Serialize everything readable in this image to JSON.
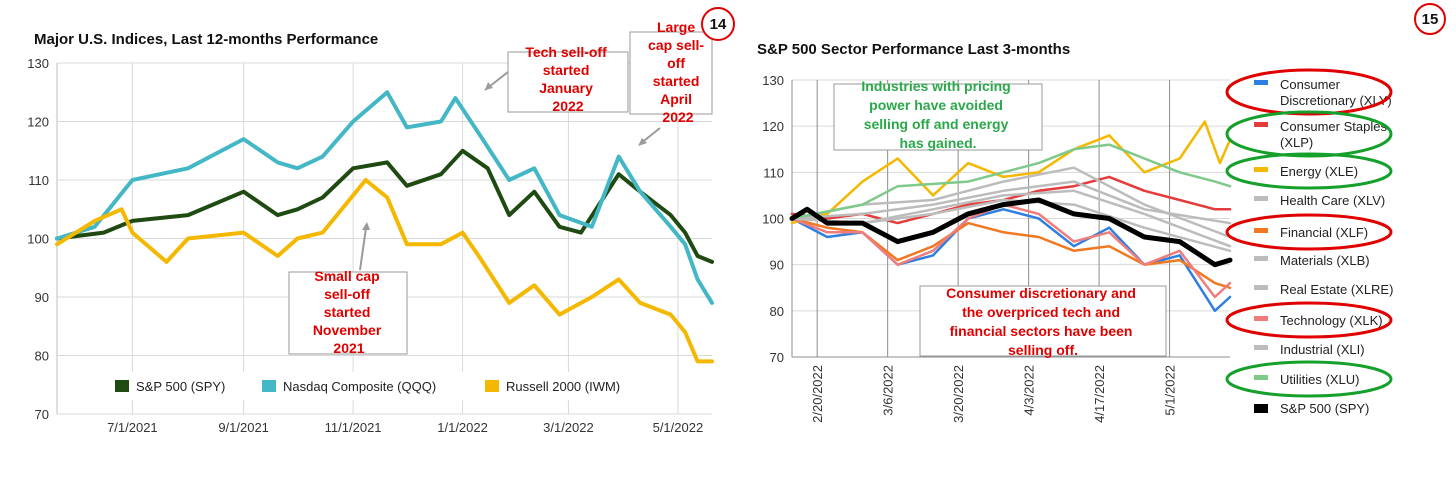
{
  "chart_data": [
    {
      "type": "line",
      "title": "Major U.S. Indices, Last 12-months Performance",
      "page_badge": "14",
      "ylim": [
        70,
        130
      ],
      "yticks": [
        "70",
        "80",
        "90",
        "100",
        "110",
        "120",
        "130"
      ],
      "xticks": [
        "7/1/2021",
        "9/1/2021",
        "11/1/2021",
        "1/1/2022",
        "3/1/2022",
        "5/1/2022"
      ],
      "x_range": [
        "2021-05-20",
        "2022-05-20"
      ],
      "grid": true,
      "legend_position": "bottom",
      "series": [
        {
          "name": "S&P 500 (SPY)",
          "color": "#1f4a12",
          "points": [
            [
              "2021-05-20",
              100
            ],
            [
              "2021-06-15",
              101
            ],
            [
              "2021-07-01",
              103
            ],
            [
              "2021-08-01",
              104
            ],
            [
              "2021-09-01",
              108
            ],
            [
              "2021-09-20",
              104
            ],
            [
              "2021-10-01",
              105
            ],
            [
              "2021-10-15",
              107
            ],
            [
              "2021-11-01",
              112
            ],
            [
              "2021-11-20",
              113
            ],
            [
              "2021-12-01",
              109
            ],
            [
              "2021-12-20",
              111
            ],
            [
              "2022-01-01",
              115
            ],
            [
              "2022-01-15",
              112
            ],
            [
              "2022-01-27",
              104
            ],
            [
              "2022-02-10",
              108
            ],
            [
              "2022-02-24",
              102
            ],
            [
              "2022-03-08",
              101
            ],
            [
              "2022-03-29",
              111
            ],
            [
              "2022-04-10",
              108
            ],
            [
              "2022-04-27",
              104
            ],
            [
              "2022-05-05",
              101
            ],
            [
              "2022-05-12",
              97
            ],
            [
              "2022-05-20",
              96
            ]
          ]
        },
        {
          "name": "Nasdaq Composite (QQQ)",
          "color": "#44b7c6",
          "points": [
            [
              "2021-05-20",
              100
            ],
            [
              "2021-06-10",
              102
            ],
            [
              "2021-07-01",
              110
            ],
            [
              "2021-08-01",
              112
            ],
            [
              "2021-09-01",
              117
            ],
            [
              "2021-09-20",
              113
            ],
            [
              "2021-10-01",
              112
            ],
            [
              "2021-10-15",
              114
            ],
            [
              "2021-11-01",
              120
            ],
            [
              "2021-11-20",
              125
            ],
            [
              "2021-12-01",
              119
            ],
            [
              "2021-12-20",
              120
            ],
            [
              "2021-12-28",
              124
            ],
            [
              "2022-01-10",
              118
            ],
            [
              "2022-01-27",
              110
            ],
            [
              "2022-02-10",
              112
            ],
            [
              "2022-02-24",
              104
            ],
            [
              "2022-03-14",
              102
            ],
            [
              "2022-03-29",
              114
            ],
            [
              "2022-04-10",
              108
            ],
            [
              "2022-04-27",
              102
            ],
            [
              "2022-05-05",
              99
            ],
            [
              "2022-05-12",
              93
            ],
            [
              "2022-05-20",
              89
            ]
          ]
        },
        {
          "name": "Russell 2000 (IWM)",
          "color": "#f5b800",
          "points": [
            [
              "2021-05-20",
              99
            ],
            [
              "2021-06-10",
              103
            ],
            [
              "2021-06-25",
              105
            ],
            [
              "2021-07-01",
              101
            ],
            [
              "2021-07-20",
              96
            ],
            [
              "2021-08-01",
              100
            ],
            [
              "2021-09-01",
              101
            ],
            [
              "2021-09-20",
              97
            ],
            [
              "2021-10-01",
              100
            ],
            [
              "2021-10-15",
              101
            ],
            [
              "2021-11-08",
              110
            ],
            [
              "2021-11-20",
              107
            ],
            [
              "2021-12-01",
              99
            ],
            [
              "2021-12-20",
              99
            ],
            [
              "2022-01-01",
              101
            ],
            [
              "2022-01-10",
              97
            ],
            [
              "2022-01-27",
              89
            ],
            [
              "2022-02-10",
              92
            ],
            [
              "2022-02-24",
              87
            ],
            [
              "2022-03-14",
              90
            ],
            [
              "2022-03-29",
              93
            ],
            [
              "2022-04-10",
              89
            ],
            [
              "2022-04-27",
              87
            ],
            [
              "2022-05-05",
              84
            ],
            [
              "2022-05-12",
              79
            ],
            [
              "2022-05-20",
              79
            ]
          ]
        }
      ],
      "annotations": [
        {
          "lines": [
            "Tech sell-off",
            "started",
            "January",
            "2022"
          ]
        },
        {
          "lines": [
            "Large",
            "cap sell-",
            "off",
            "started",
            "April",
            "2022"
          ]
        },
        {
          "lines": [
            "Small cap",
            "sell-off",
            "started",
            "November",
            "2021"
          ]
        }
      ]
    },
    {
      "type": "line",
      "title": "S&P 500 Sector Performance Last 3-months",
      "page_badge": "15",
      "ylim": [
        70,
        130
      ],
      "yticks": [
        "70",
        "80",
        "90",
        "100",
        "110",
        "120",
        "130"
      ],
      "xticks": [
        "2/20/2022",
        "3/6/2022",
        "3/20/2022",
        "4/3/2022",
        "4/17/2022",
        "5/1/2022"
      ],
      "x_range": [
        "2022-02-15",
        "2022-05-13"
      ],
      "grid": true,
      "legend_position": "right",
      "series": [
        {
          "name": "Consumer Discretionary (XLY)",
          "color": "#2f7fe0",
          "circled": "red",
          "points": [
            [
              "2022-02-15",
              100
            ],
            [
              "2022-02-22",
              96
            ],
            [
              "2022-03-01",
              97
            ],
            [
              "2022-03-08",
              90
            ],
            [
              "2022-03-15",
              92
            ],
            [
              "2022-03-22",
              100
            ],
            [
              "2022-03-29",
              102
            ],
            [
              "2022-04-05",
              100
            ],
            [
              "2022-04-12",
              94
            ],
            [
              "2022-04-19",
              98
            ],
            [
              "2022-04-26",
              90
            ],
            [
              "2022-05-03",
              92
            ],
            [
              "2022-05-10",
              80
            ],
            [
              "2022-05-13",
              83
            ]
          ]
        },
        {
          "name": "Consumer Staples (XLP)",
          "color": "#e53b3b",
          "circled": "green",
          "points": [
            [
              "2022-02-15",
              101
            ],
            [
              "2022-02-22",
              100
            ],
            [
              "2022-03-01",
              101
            ],
            [
              "2022-03-08",
              99
            ],
            [
              "2022-03-15",
              101
            ],
            [
              "2022-03-22",
              103
            ],
            [
              "2022-03-29",
              104
            ],
            [
              "2022-04-05",
              106
            ],
            [
              "2022-04-12",
              107
            ],
            [
              "2022-04-19",
              109
            ],
            [
              "2022-04-26",
              106
            ],
            [
              "2022-05-03",
              104
            ],
            [
              "2022-05-10",
              102
            ],
            [
              "2022-05-13",
              102
            ]
          ]
        },
        {
          "name": "Energy (XLE)",
          "color": "#f5b800",
          "circled": "green",
          "points": [
            [
              "2022-02-15",
              99
            ],
            [
              "2022-02-22",
              101
            ],
            [
              "2022-03-01",
              108
            ],
            [
              "2022-03-08",
              113
            ],
            [
              "2022-03-15",
              105
            ],
            [
              "2022-03-22",
              112
            ],
            [
              "2022-03-29",
              109
            ],
            [
              "2022-04-05",
              110
            ],
            [
              "2022-04-12",
              115
            ],
            [
              "2022-04-19",
              118
            ],
            [
              "2022-04-26",
              110
            ],
            [
              "2022-05-03",
              113
            ],
            [
              "2022-05-08",
              121
            ],
            [
              "2022-05-11",
              112
            ],
            [
              "2022-05-13",
              117
            ]
          ]
        },
        {
          "name": "Health Care (XLV)",
          "color": "#bcbcbc",
          "points": [
            [
              "2022-02-15",
              100
            ],
            [
              "2022-03-01",
              101
            ],
            [
              "2022-03-15",
              103
            ],
            [
              "2022-03-29",
              106
            ],
            [
              "2022-04-12",
              108
            ],
            [
              "2022-04-26",
              102
            ],
            [
              "2022-05-13",
              99
            ]
          ]
        },
        {
          "name": "Financial (XLF)",
          "color": "#f07820",
          "circled": "red",
          "points": [
            [
              "2022-02-15",
              100
            ],
            [
              "2022-02-22",
              98
            ],
            [
              "2022-03-01",
              97
            ],
            [
              "2022-03-08",
              91
            ],
            [
              "2022-03-15",
              94
            ],
            [
              "2022-03-22",
              99
            ],
            [
              "2022-03-29",
              97
            ],
            [
              "2022-04-05",
              96
            ],
            [
              "2022-04-12",
              93
            ],
            [
              "2022-04-19",
              94
            ],
            [
              "2022-04-26",
              90
            ],
            [
              "2022-05-03",
              91
            ],
            [
              "2022-05-10",
              86
            ],
            [
              "2022-05-13",
              85
            ]
          ]
        },
        {
          "name": "Materials (XLB)",
          "color": "#bcbcbc",
          "points": [
            [
              "2022-02-15",
              100
            ],
            [
              "2022-03-01",
              103
            ],
            [
              "2022-03-15",
              104
            ],
            [
              "2022-03-29",
              108
            ],
            [
              "2022-04-12",
              111
            ],
            [
              "2022-04-26",
              103
            ],
            [
              "2022-05-13",
              96
            ]
          ]
        },
        {
          "name": "Real Estate (XLRE)",
          "color": "#bcbcbc",
          "points": [
            [
              "2022-02-15",
              100
            ],
            [
              "2022-03-01",
              99
            ],
            [
              "2022-03-15",
              102
            ],
            [
              "2022-03-29",
              105
            ],
            [
              "2022-04-12",
              106
            ],
            [
              "2022-04-26",
              101
            ],
            [
              "2022-05-13",
              94
            ]
          ]
        },
        {
          "name": "Technology (XLK)",
          "color": "#ef7d7d",
          "circled": "red",
          "points": [
            [
              "2022-02-15",
              100
            ],
            [
              "2022-02-22",
              97
            ],
            [
              "2022-03-01",
              97
            ],
            [
              "2022-03-08",
              90
            ],
            [
              "2022-03-15",
              93
            ],
            [
              "2022-03-22",
              100
            ],
            [
              "2022-03-29",
              103
            ],
            [
              "2022-04-05",
              101
            ],
            [
              "2022-04-12",
              95
            ],
            [
              "2022-04-19",
              97
            ],
            [
              "2022-04-26",
              90
            ],
            [
              "2022-05-03",
              93
            ],
            [
              "2022-05-10",
              83
            ],
            [
              "2022-05-13",
              86
            ]
          ]
        },
        {
          "name": "Industrial (XLI)",
          "color": "#bcbcbc",
          "points": [
            [
              "2022-02-15",
              100
            ],
            [
              "2022-03-01",
              99
            ],
            [
              "2022-03-15",
              101
            ],
            [
              "2022-03-29",
              104
            ],
            [
              "2022-04-12",
              103
            ],
            [
              "2022-04-26",
              98
            ],
            [
              "2022-05-13",
              93
            ]
          ]
        },
        {
          "name": "Utilities (XLU)",
          "color": "#7fc98b",
          "circled": "green",
          "points": [
            [
              "2022-02-15",
              100
            ],
            [
              "2022-03-01",
              103
            ],
            [
              "2022-03-08",
              107
            ],
            [
              "2022-03-22",
              108
            ],
            [
              "2022-03-29",
              110
            ],
            [
              "2022-04-05",
              112
            ],
            [
              "2022-04-12",
              115
            ],
            [
              "2022-04-19",
              116
            ],
            [
              "2022-04-26",
              113
            ],
            [
              "2022-05-03",
              110
            ],
            [
              "2022-05-10",
              108
            ],
            [
              "2022-05-13",
              107
            ]
          ]
        },
        {
          "name": "S&P 500 (SPY)",
          "color": "#000000",
          "points": [
            [
              "2022-02-15",
              100
            ],
            [
              "2022-02-18",
              102
            ],
            [
              "2022-02-22",
              99
            ],
            [
              "2022-03-01",
              99
            ],
            [
              "2022-03-08",
              95
            ],
            [
              "2022-03-15",
              97
            ],
            [
              "2022-03-22",
              101
            ],
            [
              "2022-03-29",
              103
            ],
            [
              "2022-04-05",
              104
            ],
            [
              "2022-04-12",
              101
            ],
            [
              "2022-04-19",
              100
            ],
            [
              "2022-04-26",
              96
            ],
            [
              "2022-05-03",
              95
            ],
            [
              "2022-05-10",
              90
            ],
            [
              "2022-05-13",
              91
            ]
          ]
        }
      ],
      "annotations": [
        {
          "lines": [
            "Industries with pricing",
            "power have avoided",
            "selling off and energy",
            "has gained."
          ]
        },
        {
          "lines": [
            "Consumer discretionary and",
            "the overpriced tech and",
            "financial sectors have been",
            "selling off."
          ]
        }
      ]
    }
  ]
}
